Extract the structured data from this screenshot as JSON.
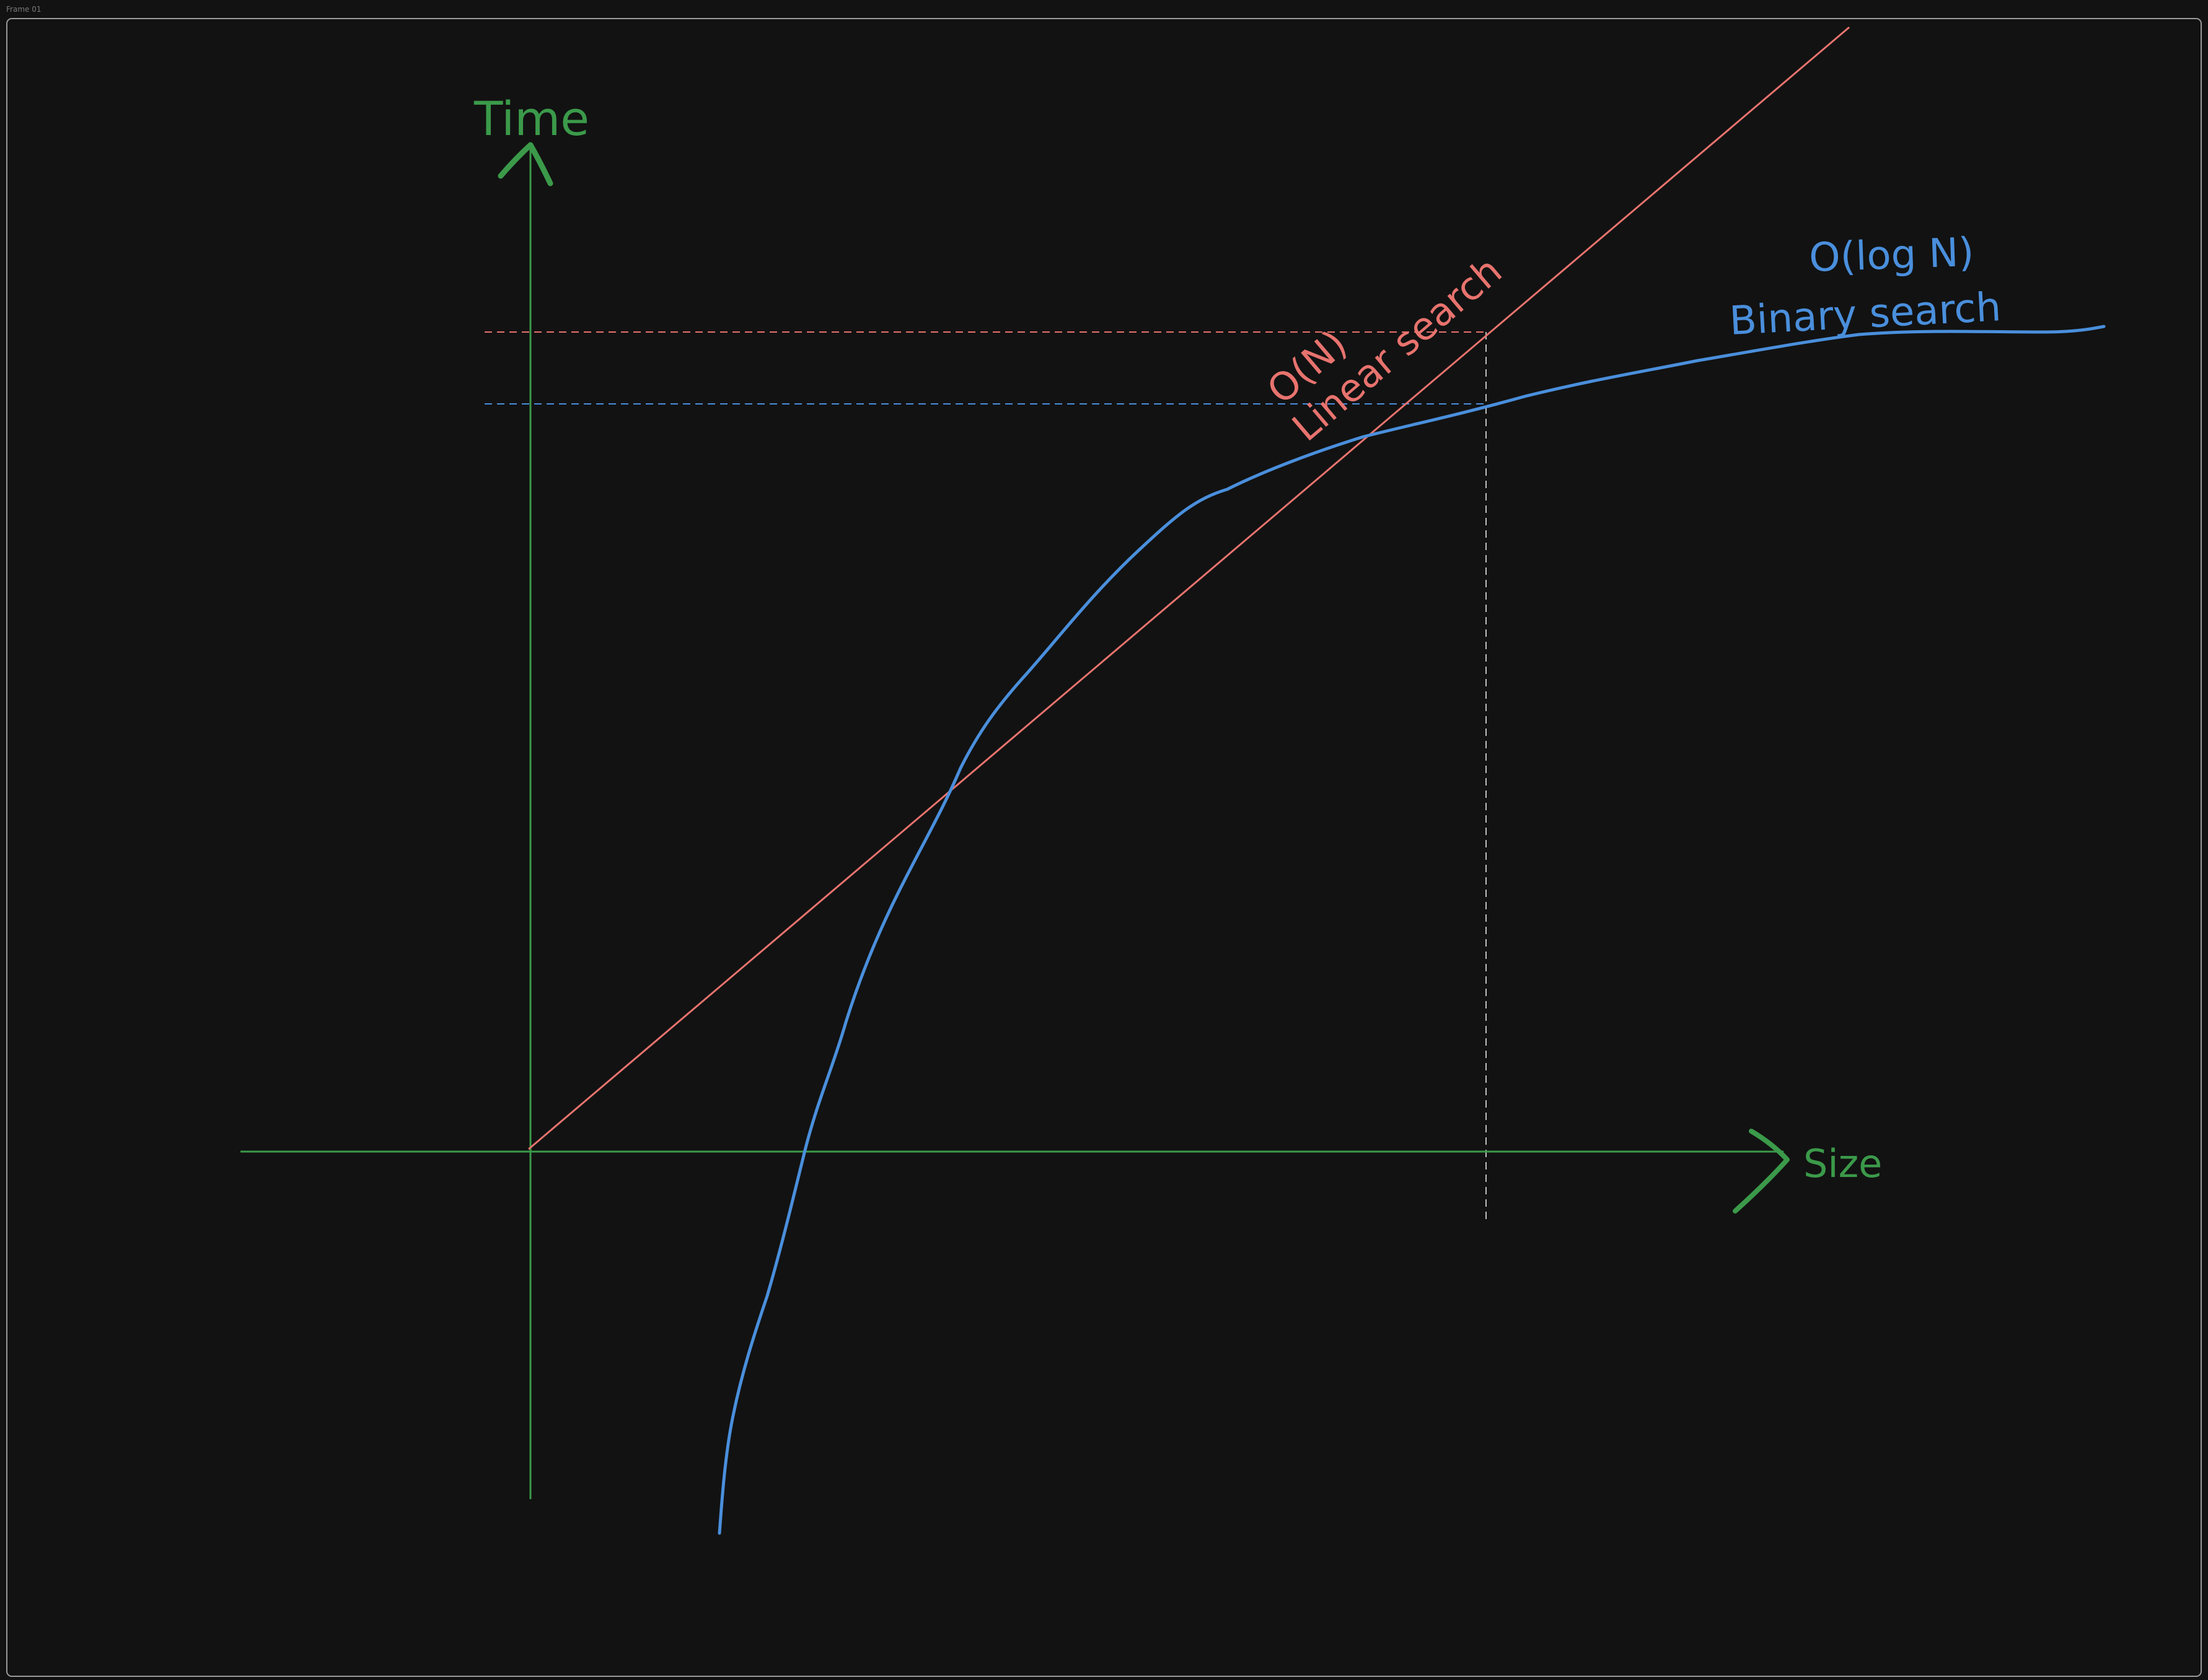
{
  "frame": {
    "label": "Frame 01"
  },
  "axes": {
    "y_label": "Time",
    "x_label": "Size",
    "color": "#3b9a4a"
  },
  "linear": {
    "big_o": "O(N)",
    "name": "Linear search",
    "color": "#e8736e"
  },
  "binary": {
    "big_o": "O(log N)",
    "name": "Binary search",
    "color": "#4a8fdc"
  },
  "guide": {
    "color": "#bfbfbf"
  }
}
